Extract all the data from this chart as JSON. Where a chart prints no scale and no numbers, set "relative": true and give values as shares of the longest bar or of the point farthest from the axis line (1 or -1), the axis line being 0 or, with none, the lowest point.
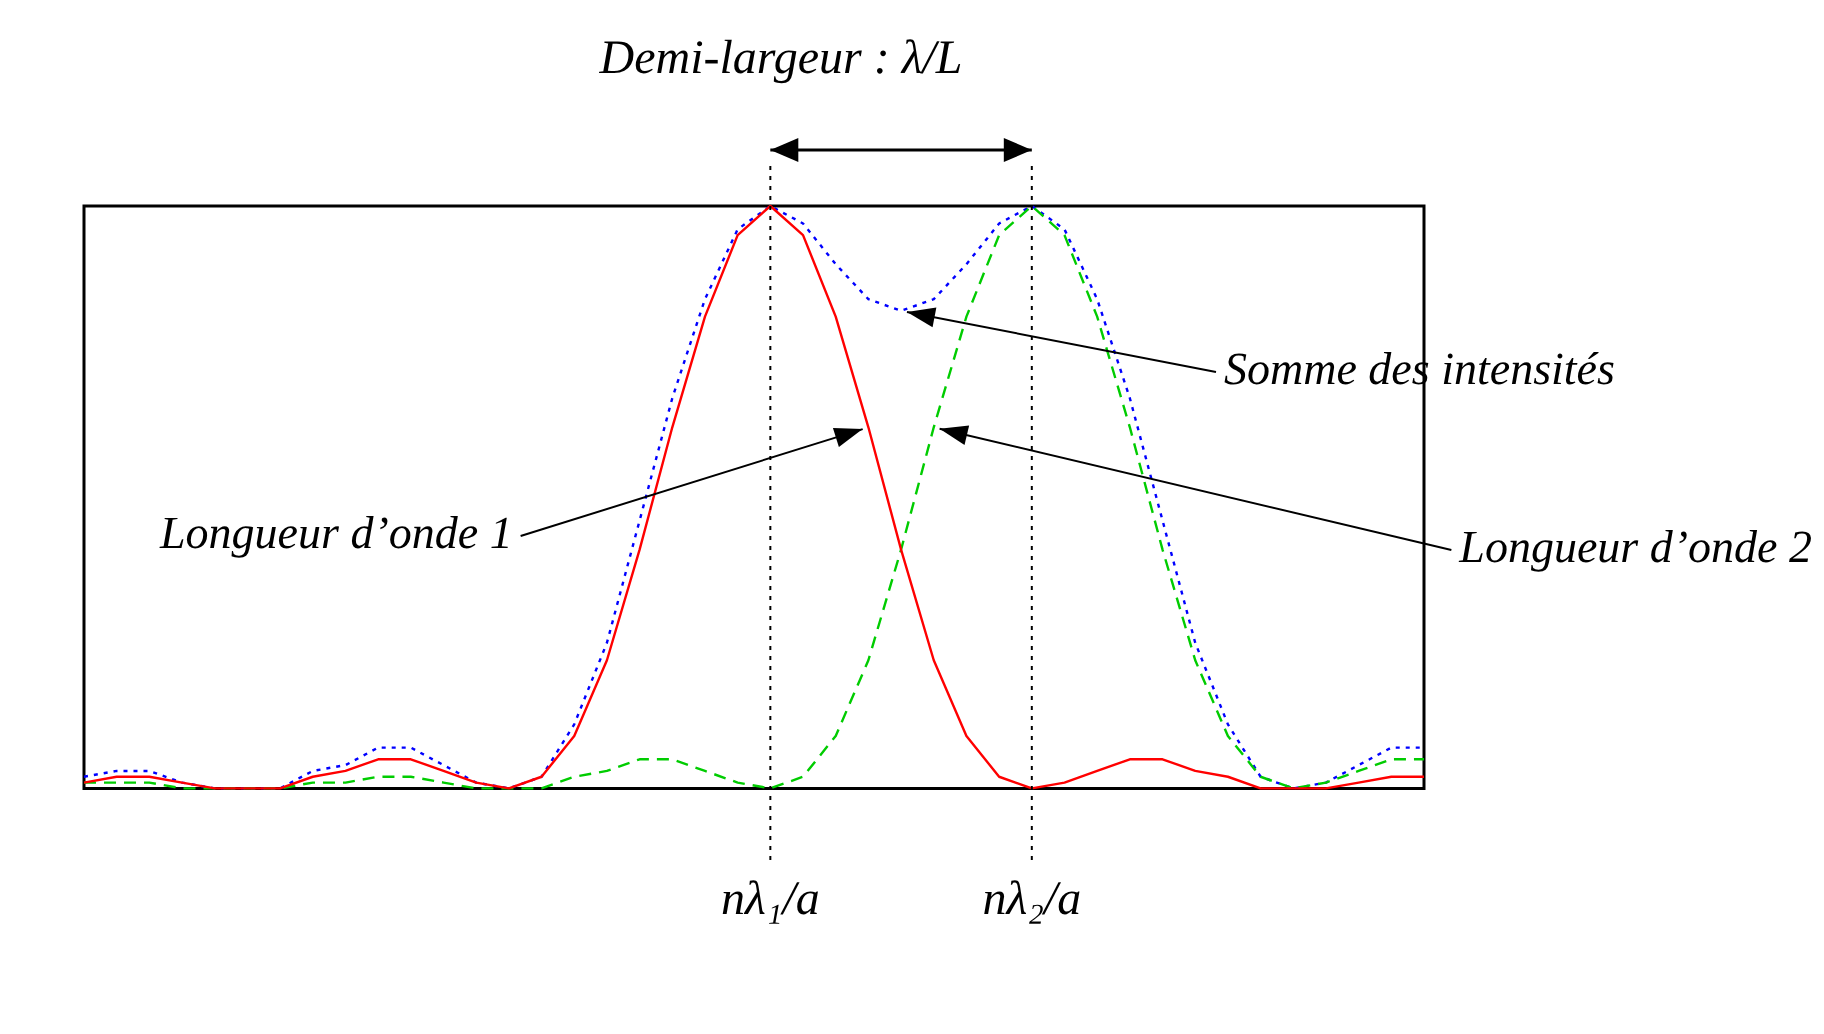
{
  "chart_data": {
    "type": "line",
    "title": "Demi-largeur : λ/L",
    "relative": true,
    "legend": false,
    "grid": false,
    "marker": "none",
    "categories": [
      null,
      null,
      null,
      null,
      null,
      null,
      null,
      null,
      null,
      null,
      null,
      null,
      null,
      null,
      null,
      null,
      null,
      null,
      null,
      null,
      null,
      "nλ₁/a",
      null,
      null,
      null,
      null,
      null,
      null,
      null,
      "nλ₂/a",
      null,
      null,
      null,
      null,
      null,
      null,
      null,
      null,
      null,
      null,
      null,
      null
    ],
    "series": [
      {
        "name": "Longueur d’onde 1",
        "color": "#ff0000",
        "line_style": "solid",
        "values": [
          0.01,
          0.02,
          0.02,
          0.01,
          0,
          0,
          0,
          0.02,
          0.03,
          0.05,
          0.05,
          0.03,
          0.01,
          0,
          0.02,
          0.09,
          0.22,
          0.41,
          0.62,
          0.81,
          0.95,
          1,
          0.95,
          0.81,
          0.62,
          0.41,
          0.22,
          0.09,
          0.02,
          0,
          0.01,
          0.03,
          0.05,
          0.05,
          0.03,
          0.02,
          0,
          0,
          0,
          0.01,
          0.02,
          0.02
        ]
      },
      {
        "name": "Longueur d’onde 2",
        "color": "#00cc00",
        "line_style": "dashed",
        "values": [
          0.01,
          0.01,
          0.01,
          0,
          0,
          0,
          0,
          0.01,
          0.01,
          0.02,
          0.02,
          0.01,
          0,
          0,
          0,
          0.02,
          0.03,
          0.05,
          0.05,
          0.03,
          0.01,
          0,
          0.02,
          0.09,
          0.22,
          0.41,
          0.62,
          0.81,
          0.95,
          1,
          0.95,
          0.81,
          0.62,
          0.41,
          0.22,
          0.09,
          0.02,
          0,
          0.01,
          0.03,
          0.05,
          0.05
        ]
      },
      {
        "name": "Somme des intensités",
        "color": "#0000ff",
        "line_style": "dotted",
        "values": [
          0.02,
          0.03,
          0.03,
          0.01,
          0,
          0,
          0,
          0.03,
          0.04,
          0.07,
          0.07,
          0.04,
          0.01,
          0,
          0.02,
          0.11,
          0.25,
          0.46,
          0.67,
          0.84,
          0.96,
          1,
          0.97,
          0.9,
          0.84,
          0.82,
          0.84,
          0.9,
          0.97,
          1,
          0.96,
          0.84,
          0.67,
          0.46,
          0.25,
          0.11,
          0.02,
          0,
          0.01,
          0.04,
          0.07,
          0.07
        ]
      }
    ],
    "ref_lines": [
      {
        "axis": "x",
        "value": "nλ₁/a",
        "line_style": "dotted",
        "color": "#000000"
      },
      {
        "axis": "x",
        "value": "nλ₂/a",
        "line_style": "dotted",
        "color": "#000000"
      }
    ]
  }
}
